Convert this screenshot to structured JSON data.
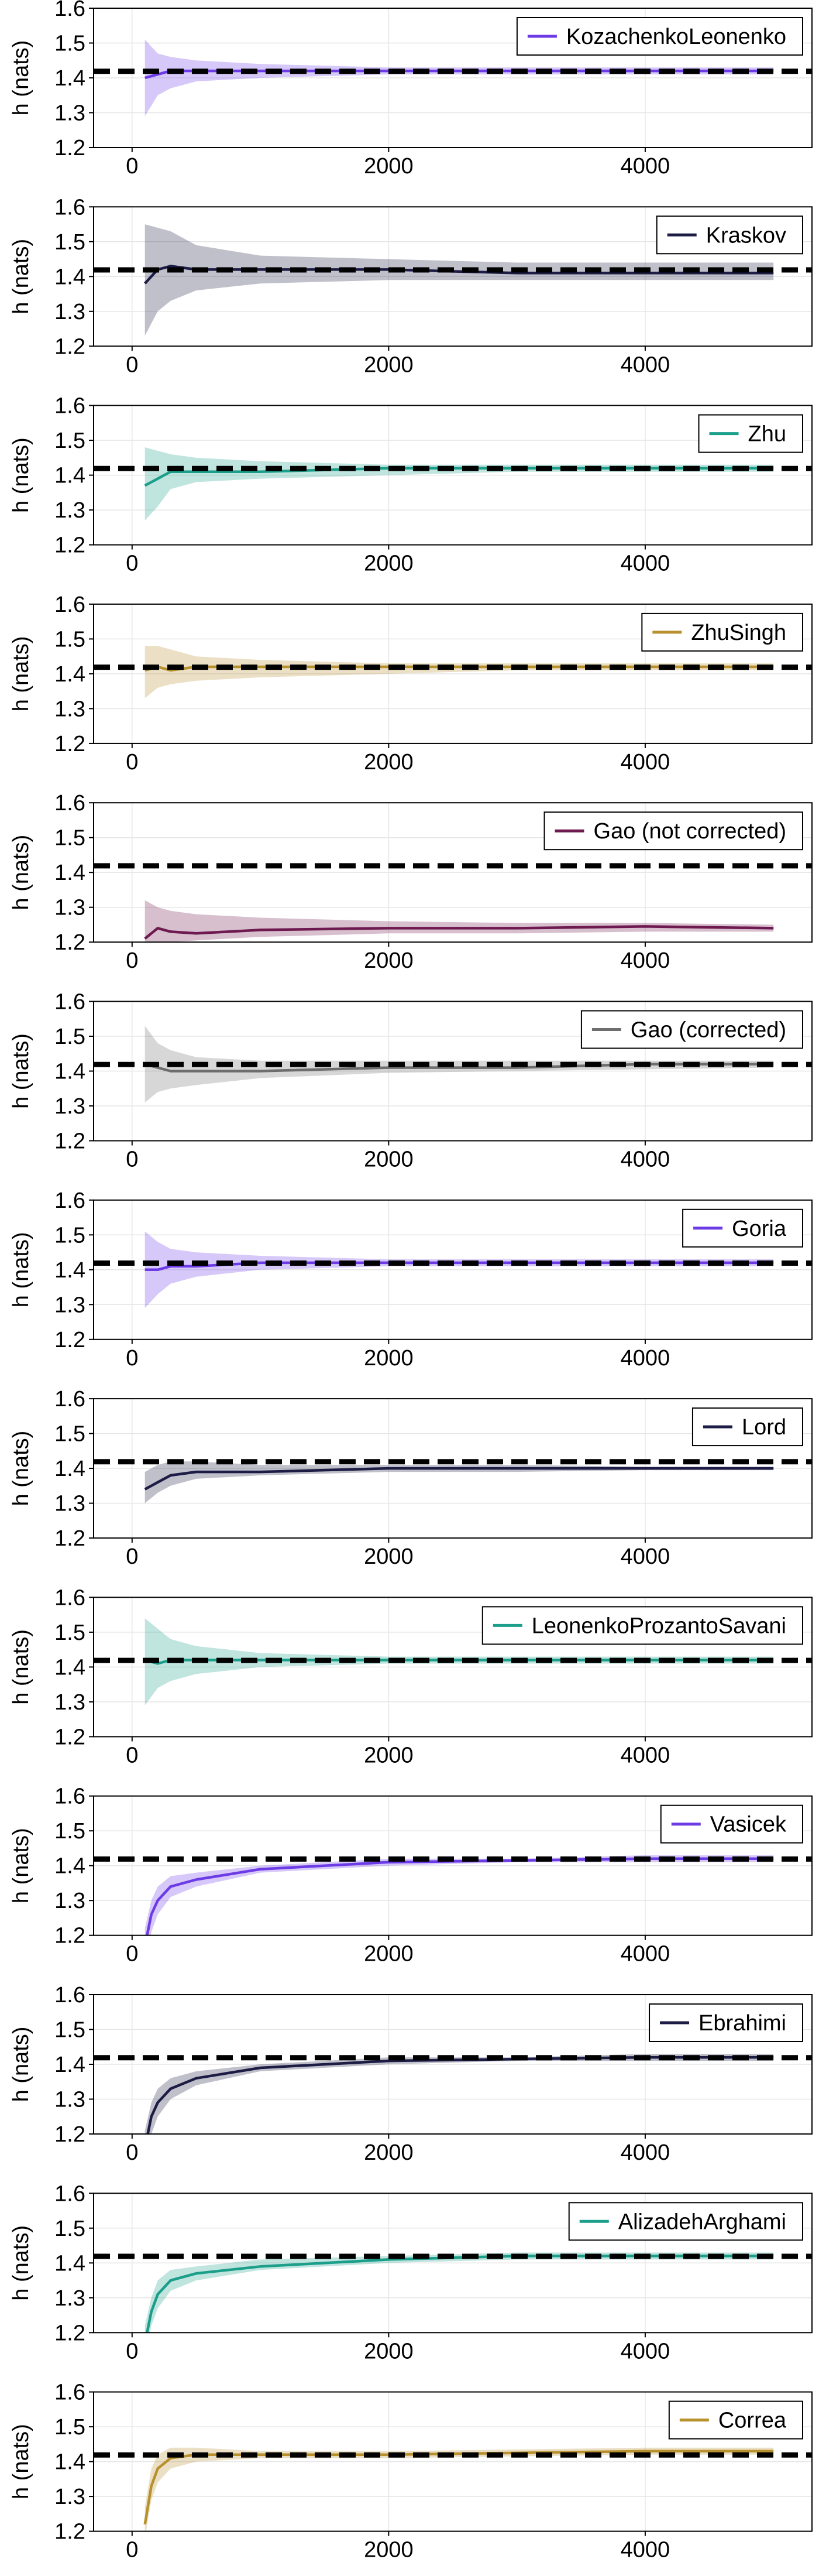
{
  "chart_data": [
    {
      "type": "line",
      "ylabel": "h (nats)",
      "xlim": [
        -300,
        5300
      ],
      "ylim": [
        1.2,
        1.6
      ],
      "xticks": [
        0,
        2000,
        4000
      ],
      "yticks": [
        1.2,
        1.3,
        1.4,
        1.5,
        1.6
      ],
      "grid": true,
      "legend_position": "top-right",
      "reference_line": 1.419,
      "series": [
        {
          "name": "KozachenkoLeonenko",
          "color": "#6c3be6",
          "x": [
            100,
            200,
            300,
            500,
            1000,
            2000,
            3000,
            4000,
            5000
          ],
          "y": [
            1.4,
            1.41,
            1.42,
            1.42,
            1.42,
            1.42,
            1.42,
            1.42,
            1.42
          ],
          "lower": [
            1.29,
            1.35,
            1.37,
            1.39,
            1.4,
            1.41,
            1.41,
            1.41,
            1.41
          ],
          "upper": [
            1.51,
            1.47,
            1.46,
            1.45,
            1.44,
            1.43,
            1.43,
            1.43,
            1.43
          ]
        }
      ]
    },
    {
      "type": "line",
      "ylabel": "h (nats)",
      "xlim": [
        -300,
        5300
      ],
      "ylim": [
        1.2,
        1.6
      ],
      "xticks": [
        0,
        2000,
        4000
      ],
      "yticks": [
        1.2,
        1.3,
        1.4,
        1.5,
        1.6
      ],
      "grid": true,
      "legend_position": "top-right",
      "reference_line": 1.419,
      "series": [
        {
          "name": "Kraskov",
          "color": "#1c1c44",
          "x": [
            100,
            200,
            300,
            500,
            1000,
            2000,
            3000,
            4000,
            5000
          ],
          "y": [
            1.38,
            1.42,
            1.43,
            1.42,
            1.42,
            1.42,
            1.41,
            1.41,
            1.41
          ],
          "lower": [
            1.23,
            1.3,
            1.33,
            1.36,
            1.38,
            1.39,
            1.39,
            1.39,
            1.39
          ],
          "upper": [
            1.55,
            1.54,
            1.53,
            1.49,
            1.46,
            1.45,
            1.44,
            1.44,
            1.44
          ]
        }
      ]
    },
    {
      "type": "line",
      "ylabel": "h (nats)",
      "xlim": [
        -300,
        5300
      ],
      "ylim": [
        1.2,
        1.6
      ],
      "xticks": [
        0,
        2000,
        4000
      ],
      "yticks": [
        1.2,
        1.3,
        1.4,
        1.5,
        1.6
      ],
      "grid": true,
      "legend_position": "top-right",
      "reference_line": 1.419,
      "series": [
        {
          "name": "Zhu",
          "color": "#1b9e8a",
          "x": [
            100,
            200,
            300,
            500,
            1000,
            2000,
            3000,
            4000,
            5000
          ],
          "y": [
            1.37,
            1.39,
            1.41,
            1.41,
            1.41,
            1.42,
            1.42,
            1.42,
            1.42
          ],
          "lower": [
            1.27,
            1.31,
            1.36,
            1.38,
            1.39,
            1.4,
            1.41,
            1.41,
            1.41
          ],
          "upper": [
            1.48,
            1.47,
            1.46,
            1.45,
            1.44,
            1.43,
            1.43,
            1.43,
            1.43
          ]
        }
      ]
    },
    {
      "type": "line",
      "ylabel": "h (nats)",
      "xlim": [
        -300,
        5300
      ],
      "ylim": [
        1.2,
        1.6
      ],
      "xticks": [
        0,
        2000,
        4000
      ],
      "yticks": [
        1.2,
        1.3,
        1.4,
        1.5,
        1.6
      ],
      "grid": true,
      "legend_position": "top-right",
      "reference_line": 1.419,
      "series": [
        {
          "name": "ZhuSingh",
          "color": "#b8912f",
          "x": [
            100,
            200,
            300,
            500,
            1000,
            2000,
            3000,
            4000,
            5000
          ],
          "y": [
            1.41,
            1.42,
            1.41,
            1.42,
            1.42,
            1.42,
            1.42,
            1.42,
            1.42
          ],
          "lower": [
            1.33,
            1.36,
            1.37,
            1.38,
            1.39,
            1.4,
            1.41,
            1.41,
            1.41
          ],
          "upper": [
            1.48,
            1.48,
            1.47,
            1.45,
            1.44,
            1.43,
            1.43,
            1.43,
            1.43
          ]
        }
      ]
    },
    {
      "type": "line",
      "ylabel": "h (nats)",
      "xlim": [
        -300,
        5300
      ],
      "ylim": [
        1.2,
        1.6
      ],
      "xticks": [
        0,
        2000,
        4000
      ],
      "yticks": [
        1.2,
        1.3,
        1.4,
        1.5,
        1.6
      ],
      "grid": true,
      "legend_position": "top-right",
      "reference_line": 1.419,
      "series": [
        {
          "name": "Gao (not corrected)",
          "color": "#6e1a50",
          "x": [
            100,
            200,
            300,
            500,
            1000,
            2000,
            3000,
            4000,
            5000
          ],
          "y": [
            1.21,
            1.24,
            1.23,
            1.225,
            1.235,
            1.24,
            1.24,
            1.245,
            1.24
          ],
          "lower": [
            1.18,
            1.19,
            1.2,
            1.205,
            1.215,
            1.225,
            1.225,
            1.23,
            1.23
          ],
          "upper": [
            1.32,
            1.3,
            1.29,
            1.28,
            1.27,
            1.26,
            1.255,
            1.255,
            1.25
          ]
        }
      ]
    },
    {
      "type": "line",
      "ylabel": "h (nats)",
      "xlim": [
        -300,
        5300
      ],
      "ylim": [
        1.2,
        1.6
      ],
      "xticks": [
        0,
        2000,
        4000
      ],
      "yticks": [
        1.2,
        1.3,
        1.4,
        1.5,
        1.6
      ],
      "grid": true,
      "legend_position": "top-right",
      "reference_line": 1.419,
      "series": [
        {
          "name": "Gao (corrected)",
          "color": "#6e6e6e",
          "x": [
            100,
            200,
            300,
            500,
            1000,
            2000,
            3000,
            4000,
            5000
          ],
          "y": [
            1.42,
            1.41,
            1.4,
            1.4,
            1.4,
            1.41,
            1.41,
            1.42,
            1.42
          ],
          "lower": [
            1.31,
            1.34,
            1.35,
            1.36,
            1.38,
            1.395,
            1.4,
            1.405,
            1.41
          ],
          "upper": [
            1.53,
            1.48,
            1.46,
            1.44,
            1.43,
            1.43,
            1.43,
            1.43,
            1.43
          ]
        }
      ]
    },
    {
      "type": "line",
      "ylabel": "h (nats)",
      "xlim": [
        -300,
        5300
      ],
      "ylim": [
        1.2,
        1.6
      ],
      "xticks": [
        0,
        2000,
        4000
      ],
      "yticks": [
        1.2,
        1.3,
        1.4,
        1.5,
        1.6
      ],
      "grid": true,
      "legend_position": "top-right",
      "reference_line": 1.419,
      "series": [
        {
          "name": "Goria",
          "color": "#6c3be6",
          "x": [
            100,
            200,
            300,
            500,
            1000,
            2000,
            3000,
            4000,
            5000
          ],
          "y": [
            1.4,
            1.4,
            1.41,
            1.41,
            1.42,
            1.42,
            1.42,
            1.42,
            1.42
          ],
          "lower": [
            1.29,
            1.33,
            1.36,
            1.38,
            1.4,
            1.41,
            1.41,
            1.41,
            1.41
          ],
          "upper": [
            1.51,
            1.48,
            1.46,
            1.45,
            1.44,
            1.43,
            1.43,
            1.43,
            1.43
          ]
        }
      ]
    },
    {
      "type": "line",
      "ylabel": "h (nats)",
      "xlim": [
        -300,
        5300
      ],
      "ylim": [
        1.2,
        1.6
      ],
      "xticks": [
        0,
        2000,
        4000
      ],
      "yticks": [
        1.2,
        1.3,
        1.4,
        1.5,
        1.6
      ],
      "grid": true,
      "legend_position": "top-right",
      "reference_line": 1.419,
      "series": [
        {
          "name": "Lord",
          "color": "#1c1c44",
          "x": [
            100,
            200,
            300,
            500,
            1000,
            2000,
            3000,
            4000,
            5000
          ],
          "y": [
            1.34,
            1.36,
            1.38,
            1.39,
            1.39,
            1.4,
            1.4,
            1.4,
            1.4
          ],
          "lower": [
            1.3,
            1.33,
            1.35,
            1.37,
            1.38,
            1.39,
            1.39,
            1.395,
            1.395
          ],
          "upper": [
            1.39,
            1.41,
            1.42,
            1.42,
            1.41,
            1.41,
            1.41,
            1.405,
            1.405
          ]
        }
      ]
    },
    {
      "type": "line",
      "ylabel": "h (nats)",
      "xlim": [
        -300,
        5300
      ],
      "ylim": [
        1.2,
        1.6
      ],
      "xticks": [
        0,
        2000,
        4000
      ],
      "yticks": [
        1.2,
        1.3,
        1.4,
        1.5,
        1.6
      ],
      "grid": true,
      "legend_position": "top-right",
      "reference_line": 1.419,
      "series": [
        {
          "name": "LeonenkoProzantoSavani",
          "color": "#1b9e8a",
          "x": [
            100,
            200,
            300,
            500,
            1000,
            2000,
            3000,
            4000,
            5000
          ],
          "y": [
            1.42,
            1.41,
            1.42,
            1.42,
            1.42,
            1.42,
            1.42,
            1.42,
            1.42
          ],
          "lower": [
            1.29,
            1.34,
            1.36,
            1.38,
            1.4,
            1.41,
            1.41,
            1.41,
            1.41
          ],
          "upper": [
            1.54,
            1.51,
            1.48,
            1.46,
            1.44,
            1.43,
            1.43,
            1.43,
            1.43
          ]
        }
      ]
    },
    {
      "type": "line",
      "ylabel": "h (nats)",
      "xlim": [
        -300,
        5300
      ],
      "ylim": [
        1.2,
        1.6
      ],
      "xticks": [
        0,
        2000,
        4000
      ],
      "yticks": [
        1.2,
        1.3,
        1.4,
        1.5,
        1.6
      ],
      "grid": true,
      "legend_position": "top-right",
      "reference_line": 1.419,
      "series": [
        {
          "name": "Vasicek",
          "color": "#6c3be6",
          "x": [
            100,
            150,
            200,
            300,
            500,
            1000,
            2000,
            3000,
            4000,
            5000
          ],
          "y": [
            1.17,
            1.26,
            1.3,
            1.34,
            1.36,
            1.39,
            1.41,
            1.415,
            1.42,
            1.42
          ],
          "lower": [
            1.12,
            1.21,
            1.26,
            1.31,
            1.34,
            1.38,
            1.4,
            1.41,
            1.41,
            1.41
          ],
          "upper": [
            1.22,
            1.3,
            1.34,
            1.37,
            1.38,
            1.4,
            1.42,
            1.42,
            1.43,
            1.43
          ]
        }
      ]
    },
    {
      "type": "line",
      "ylabel": "h (nats)",
      "xlim": [
        -300,
        5300
      ],
      "ylim": [
        1.2,
        1.6
      ],
      "xticks": [
        0,
        2000,
        4000
      ],
      "yticks": [
        1.2,
        1.3,
        1.4,
        1.5,
        1.6
      ],
      "grid": true,
      "legend_position": "top-right",
      "reference_line": 1.419,
      "series": [
        {
          "name": "Ebrahimi",
          "color": "#1c1c44",
          "x": [
            100,
            150,
            200,
            300,
            500,
            1000,
            2000,
            3000,
            4000,
            5000
          ],
          "y": [
            1.16,
            1.25,
            1.29,
            1.33,
            1.36,
            1.39,
            1.41,
            1.415,
            1.42,
            1.42
          ],
          "lower": [
            1.11,
            1.2,
            1.25,
            1.3,
            1.34,
            1.38,
            1.4,
            1.41,
            1.41,
            1.41
          ],
          "upper": [
            1.21,
            1.29,
            1.33,
            1.36,
            1.38,
            1.4,
            1.42,
            1.42,
            1.43,
            1.43
          ]
        }
      ]
    },
    {
      "type": "line",
      "ylabel": "h (nats)",
      "xlim": [
        -300,
        5300
      ],
      "ylim": [
        1.2,
        1.6
      ],
      "xticks": [
        0,
        2000,
        4000
      ],
      "yticks": [
        1.2,
        1.3,
        1.4,
        1.5,
        1.6
      ],
      "grid": true,
      "legend_position": "top-right",
      "reference_line": 1.419,
      "series": [
        {
          "name": "AlizadehArghami",
          "color": "#1b9e8a",
          "x": [
            100,
            150,
            200,
            300,
            500,
            1000,
            2000,
            3000,
            4000,
            5000
          ],
          "y": [
            1.17,
            1.26,
            1.31,
            1.35,
            1.37,
            1.39,
            1.41,
            1.42,
            1.42,
            1.42
          ],
          "lower": [
            1.12,
            1.22,
            1.27,
            1.32,
            1.35,
            1.38,
            1.4,
            1.41,
            1.41,
            1.41
          ],
          "upper": [
            1.22,
            1.3,
            1.35,
            1.38,
            1.39,
            1.41,
            1.42,
            1.43,
            1.43,
            1.43
          ]
        }
      ]
    },
    {
      "type": "line",
      "ylabel": "h (nats)",
      "xlim": [
        -300,
        5300
      ],
      "ylim": [
        1.2,
        1.6
      ],
      "xticks": [
        0,
        2000,
        4000
      ],
      "yticks": [
        1.2,
        1.3,
        1.4,
        1.5,
        1.6
      ],
      "grid": true,
      "legend_position": "top-right",
      "reference_line": 1.419,
      "series": [
        {
          "name": "Correa",
          "color": "#b8912f",
          "x": [
            100,
            150,
            200,
            300,
            500,
            1000,
            2000,
            3000,
            4000,
            5000
          ],
          "y": [
            1.22,
            1.33,
            1.38,
            1.41,
            1.42,
            1.42,
            1.42,
            1.425,
            1.43,
            1.43
          ],
          "lower": [
            1.18,
            1.29,
            1.34,
            1.38,
            1.4,
            1.41,
            1.41,
            1.415,
            1.42,
            1.42
          ],
          "upper": [
            1.27,
            1.38,
            1.42,
            1.44,
            1.44,
            1.43,
            1.43,
            1.435,
            1.44,
            1.44
          ]
        }
      ]
    }
  ]
}
